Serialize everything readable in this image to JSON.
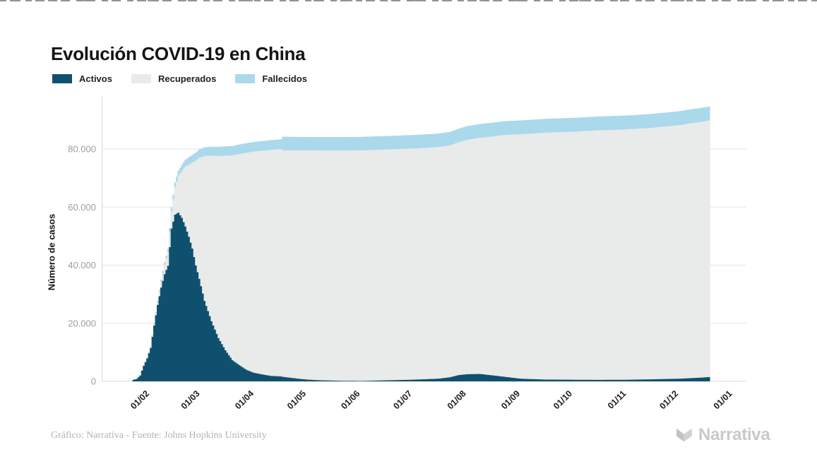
{
  "page": {
    "title": "Evolución COVID-19 en China"
  },
  "legend": [
    {
      "label": "Activos",
      "color": "#10506f"
    },
    {
      "label": "Recuperados",
      "color": "#e9eaea"
    },
    {
      "label": "Fallecidos",
      "color": "#abd9ec"
    }
  ],
  "footer": {
    "credit": "Gráfico: Narrativa - Fuente: Johns Hopkins University",
    "brand": "Narrativa"
  },
  "chart_data": {
    "type": "area",
    "stacked": true,
    "title": "Evolución COVID-19 en China",
    "ylabel": "Número de casos",
    "xlabel": "",
    "ylim": [
      0,
      97000
    ],
    "grid": "horizontal",
    "legend_position": "top-left",
    "yticks": [
      0,
      20000,
      40000,
      60000,
      80000
    ],
    "ytick_labels": [
      "0",
      "20.000",
      "40.000",
      "60.000",
      "80.000"
    ],
    "xticks": [
      {
        "date": "2020-02-01",
        "label": "01/02"
      },
      {
        "date": "2020-03-01",
        "label": "01/03"
      },
      {
        "date": "2020-04-01",
        "label": "01/04"
      },
      {
        "date": "2020-05-01",
        "label": "01/05"
      },
      {
        "date": "2020-06-01",
        "label": "01/06"
      },
      {
        "date": "2020-07-01",
        "label": "01/07"
      },
      {
        "date": "2020-08-01",
        "label": "01/08"
      },
      {
        "date": "2020-09-01",
        "label": "01/09"
      },
      {
        "date": "2020-10-01",
        "label": "01/10"
      },
      {
        "date": "2020-11-01",
        "label": "01/11"
      },
      {
        "date": "2020-12-01",
        "label": "01/12"
      },
      {
        "date": "2021-01-01",
        "label": "01/01"
      }
    ],
    "series_order_bottom_to_top": [
      "Activos",
      "Recuperados",
      "Fallecidos"
    ],
    "colors": {
      "activos": "#10506f",
      "recuperados": "#e9eaea",
      "fallecidos": "#abd9ec"
    },
    "points": [
      {
        "date": "2020-01-22",
        "activos": 510,
        "recuperados": 28,
        "fallecidos": 17
      },
      {
        "date": "2020-01-24",
        "activos": 850,
        "recuperados": 38,
        "fallecidos": 26
      },
      {
        "date": "2020-01-26",
        "activos": 2000,
        "recuperados": 52,
        "fallecidos": 56
      },
      {
        "date": "2020-01-28",
        "activos": 5350,
        "recuperados": 105,
        "fallecidos": 131
      },
      {
        "date": "2020-01-30",
        "activos": 7900,
        "recuperados": 175,
        "fallecidos": 213
      },
      {
        "date": "2020-02-01",
        "activos": 11500,
        "recuperados": 285,
        "fallecidos": 259
      },
      {
        "date": "2020-02-03",
        "activos": 19200,
        "recuperados": 480,
        "fallecidos": 361
      },
      {
        "date": "2020-02-05",
        "activos": 26300,
        "recuperados": 900,
        "fallecidos": 491
      },
      {
        "date": "2020-02-07",
        "activos": 32300,
        "recuperados": 2060,
        "fallecidos": 636
      },
      {
        "date": "2020-02-09",
        "activos": 36900,
        "recuperados": 3250,
        "fallecidos": 812
      },
      {
        "date": "2020-02-11",
        "activos": 39800,
        "recuperados": 4740,
        "fallecidos": 1112
      },
      {
        "date": "2020-02-13",
        "activos": 52600,
        "recuperados": 5970,
        "fallecidos": 1380
      },
      {
        "date": "2020-02-15",
        "activos": 57400,
        "recuperados": 9420,
        "fallecidos": 1665
      },
      {
        "date": "2020-02-17",
        "activos": 58100,
        "recuperados": 12600,
        "fallecidos": 1868
      },
      {
        "date": "2020-02-19",
        "activos": 56300,
        "recuperados": 16150,
        "fallecidos": 2127
      },
      {
        "date": "2020-02-21",
        "activos": 53300,
        "recuperados": 20700,
        "fallecidos": 2345
      },
      {
        "date": "2020-02-23",
        "activos": 49800,
        "recuperados": 24770,
        "fallecidos": 2592
      },
      {
        "date": "2020-02-25",
        "activos": 45700,
        "recuperados": 29600,
        "fallecidos": 2699
      },
      {
        "date": "2020-02-27",
        "activos": 39900,
        "recuperados": 36100,
        "fallecidos": 2790
      },
      {
        "date": "2020-02-29",
        "activos": 35300,
        "recuperados": 41700,
        "fallecidos": 2867
      },
      {
        "date": "2020-03-03",
        "activos": 27700,
        "recuperados": 49900,
        "fallecidos": 2995
      },
      {
        "date": "2020-03-07",
        "activos": 20700,
        "recuperados": 57000,
        "fallecidos": 3097
      },
      {
        "date": "2020-03-11",
        "activos": 14900,
        "recuperados": 62700,
        "fallecidos": 3169
      },
      {
        "date": "2020-03-15",
        "activos": 10700,
        "recuperados": 67000,
        "fallecidos": 3213
      },
      {
        "date": "2020-03-19",
        "activos": 7300,
        "recuperados": 70500,
        "fallecidos": 3248
      },
      {
        "date": "2020-03-23",
        "activos": 5600,
        "recuperados": 72700,
        "fallecidos": 3276
      },
      {
        "date": "2020-03-27",
        "activos": 4000,
        "recuperados": 74700,
        "fallecidos": 3299
      },
      {
        "date": "2020-03-31",
        "activos": 3000,
        "recuperados": 76100,
        "fallecidos": 3310
      },
      {
        "date": "2020-04-05",
        "activos": 2400,
        "recuperados": 77000,
        "fallecidos": 3335
      },
      {
        "date": "2020-04-10",
        "activos": 1900,
        "recuperados": 77800,
        "fallecidos": 3343
      },
      {
        "date": "2020-04-16",
        "activos": 1700,
        "recuperados": 78300,
        "fallecidos": 3348
      },
      {
        "date": "2020-04-17",
        "activos": 1550,
        "recuperados": 78050,
        "fallecidos": 4640
      },
      {
        "date": "2020-04-24",
        "activos": 1050,
        "recuperados": 78500,
        "fallecidos": 4643
      },
      {
        "date": "2020-05-01",
        "activos": 600,
        "recuperados": 78900,
        "fallecidos": 4644
      },
      {
        "date": "2020-05-10",
        "activos": 350,
        "recuperados": 79150,
        "fallecidos": 4645
      },
      {
        "date": "2020-05-20",
        "activos": 200,
        "recuperados": 79280,
        "fallecidos": 4645
      },
      {
        "date": "2020-06-01",
        "activos": 150,
        "recuperados": 79400,
        "fallecidos": 4645
      },
      {
        "date": "2020-06-15",
        "activos": 350,
        "recuperados": 79480,
        "fallecidos": 4646
      },
      {
        "date": "2020-07-01",
        "activos": 580,
        "recuperados": 79600,
        "fallecidos": 4650
      },
      {
        "date": "2020-07-15",
        "activos": 900,
        "recuperados": 79750,
        "fallecidos": 4655
      },
      {
        "date": "2020-07-22",
        "activos": 1400,
        "recuperados": 79850,
        "fallecidos": 4660
      },
      {
        "date": "2020-07-27",
        "activos": 2150,
        "recuperados": 80200,
        "fallecidos": 4675
      },
      {
        "date": "2020-08-01",
        "activos": 2450,
        "recuperados": 80750,
        "fallecidos": 4690
      },
      {
        "date": "2020-08-08",
        "activos": 2550,
        "recuperados": 81300,
        "fallecidos": 4720
      },
      {
        "date": "2020-08-15",
        "activos": 2100,
        "recuperados": 82200,
        "fallecidos": 4750
      },
      {
        "date": "2020-08-22",
        "activos": 1600,
        "recuperados": 83200,
        "fallecidos": 4765
      },
      {
        "date": "2020-09-01",
        "activos": 900,
        "recuperados": 84200,
        "fallecidos": 4775
      },
      {
        "date": "2020-09-15",
        "activos": 620,
        "recuperados": 85000,
        "fallecidos": 4780
      },
      {
        "date": "2020-10-01",
        "activos": 560,
        "recuperados": 85400,
        "fallecidos": 4780
      },
      {
        "date": "2020-10-15",
        "activos": 520,
        "recuperados": 85900,
        "fallecidos": 4785
      },
      {
        "date": "2020-11-01",
        "activos": 560,
        "recuperados": 86200,
        "fallecidos": 4790
      },
      {
        "date": "2020-11-15",
        "activos": 700,
        "recuperados": 86600,
        "fallecidos": 4800
      },
      {
        "date": "2020-12-01",
        "activos": 920,
        "recuperados": 87300,
        "fallecidos": 4810
      },
      {
        "date": "2020-12-08",
        "activos": 1120,
        "recuperados": 87800,
        "fallecidos": 4820
      },
      {
        "date": "2020-12-14",
        "activos": 1320,
        "recuperados": 88100,
        "fallecidos": 4830
      },
      {
        "date": "2020-12-18",
        "activos": 1500,
        "recuperados": 88300,
        "fallecidos": 4840
      }
    ]
  }
}
